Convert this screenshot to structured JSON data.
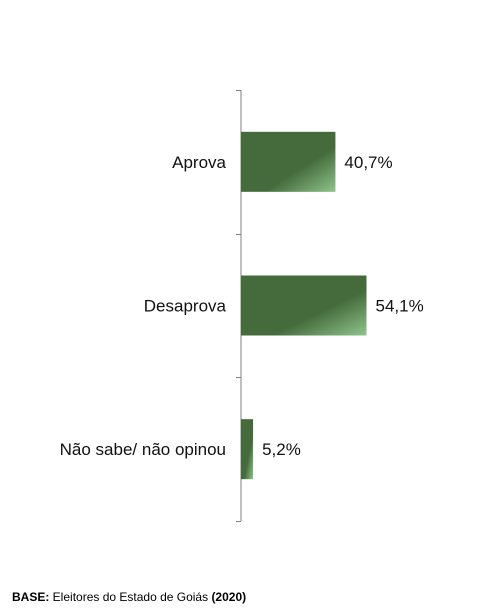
{
  "chart_data": {
    "type": "bar",
    "orientation": "horizontal",
    "categories": [
      "Aprova",
      "Desaprova",
      "Não sabe/ não opinou"
    ],
    "values": [
      40.7,
      54.1,
      5.2
    ],
    "value_labels": [
      "40,7%",
      "54,1%",
      "5,2%"
    ],
    "unit": "%",
    "xlim": [
      0,
      100
    ],
    "grid": false,
    "legend": "none",
    "colors": {
      "bar_dark": "#456b3c",
      "bar_light": "#8fc58c",
      "axis": "#808080"
    }
  },
  "footnote": {
    "prefix": "BASE:",
    "text": " Eleitores do Estado de Goiás ",
    "year": "(2020)"
  }
}
